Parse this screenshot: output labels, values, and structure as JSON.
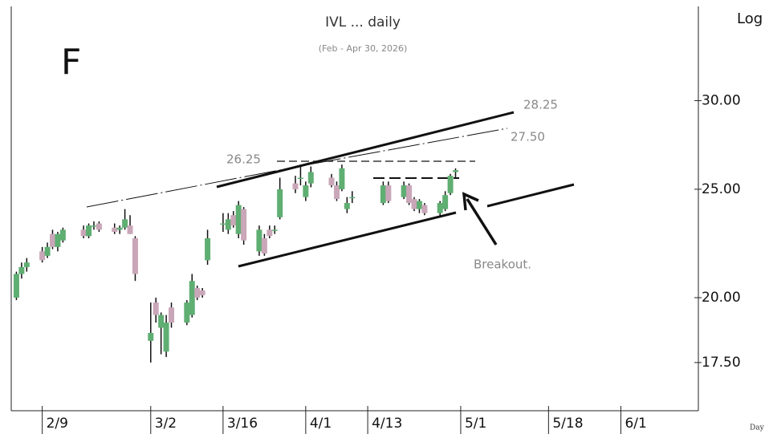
{
  "chart_data": {
    "type": "candlestick",
    "title": "IVL ... daily",
    "subtitle": "(Feb - Apr 30, 2026)",
    "panel_label": "F",
    "scale_label": "Log",
    "period_label": "Day",
    "annotations": [
      "26.25",
      "27.50",
      "28.25",
      "Breakout."
    ],
    "log_scale": true,
    "up_color": "#5fae72",
    "down_color": "#c9a6b8",
    "xlim": [
      "2/3",
      "6/16"
    ],
    "xticks": [
      "2/9",
      "3/2",
      "3/16",
      "4/1",
      "4/13",
      "5/1",
      "5/18",
      "6/1"
    ],
    "ylim": [
      15.9,
      36.3
    ],
    "yticks": [
      {
        "value": 17.5,
        "label": "17.50"
      },
      {
        "value": 20,
        "label": "20.00"
      },
      {
        "value": 25,
        "label": "25.00"
      },
      {
        "value": 30,
        "label": "30.00"
      }
    ],
    "x": [
      "2/4",
      "2/5",
      "2/6",
      "2/9",
      "2/10",
      "2/11",
      "2/12",
      "2/13",
      "2/17",
      "2/18",
      "2/19",
      "2/20",
      "2/23",
      "2/24",
      "2/25",
      "2/26",
      "2/27",
      "3/2",
      "3/3",
      "3/4",
      "3/5",
      "3/6",
      "3/9",
      "3/10",
      "3/11",
      "3/12",
      "3/13",
      "3/16",
      "3/17",
      "3/18",
      "3/19",
      "3/20",
      "3/23",
      "3/24",
      "3/25",
      "3/26",
      "3/27",
      "3/30",
      "3/31",
      "4/1",
      "4/2",
      "4/6",
      "4/7",
      "4/8",
      "4/9",
      "4/10",
      "4/16",
      "4/17",
      "4/20",
      "4/21",
      "4/22",
      "4/23",
      "4/24",
      "4/27",
      "4/28",
      "4/29",
      "4/30"
    ],
    "open": [
      20.0,
      21.0,
      21.3,
      22.0,
      21.8,
      22.8,
      22.2,
      22.5,
      23.0,
      22.7,
      23.2,
      23.3,
      23.1,
      23.0,
      23.1,
      23.2,
      22.6,
      18.3,
      19.8,
      18.8,
      17.9,
      19.6,
      19.0,
      19.3,
      20.4,
      20.3,
      21.6,
      23.3,
      23.0,
      23.7,
      22.8,
      24.0,
      22.0,
      22.6,
      23.0,
      23.0,
      23.6,
      25.3,
      25.6,
      24.6,
      25.3,
      25.6,
      25.2,
      25.0,
      24.0,
      24.6,
      24.3,
      25.2,
      24.6,
      25.2,
      24.5,
      24.0,
      24.2,
      23.8,
      24.0,
      24.8,
      25.9
    ],
    "high": [
      21.1,
      21.5,
      21.7,
      22.2,
      22.4,
      23.0,
      22.9,
      23.1,
      23.2,
      23.3,
      23.4,
      23.4,
      23.3,
      23.2,
      24.0,
      23.7,
      22.7,
      19.8,
      20.0,
      19.4,
      19.3,
      19.8,
      19.9,
      21.0,
      20.5,
      20.4,
      23.0,
      23.8,
      23.8,
      23.9,
      24.4,
      24.1,
      23.2,
      22.8,
      23.2,
      23.2,
      25.6,
      25.7,
      26.3,
      25.4,
      26.2,
      25.8,
      25.4,
      26.3,
      24.6,
      24.9,
      25.4,
      25.4,
      25.4,
      25.3,
      24.6,
      24.5,
      24.3,
      24.4,
      24.9,
      25.8,
      26.1
    ],
    "low": [
      19.9,
      20.8,
      21.1,
      21.5,
      21.7,
      22.1,
      22.0,
      22.4,
      22.6,
      22.6,
      23.0,
      22.9,
      22.8,
      22.8,
      23.0,
      22.8,
      20.7,
      17.5,
      19.0,
      17.8,
      17.7,
      18.8,
      18.9,
      19.2,
      19.9,
      20.0,
      21.4,
      22.9,
      22.8,
      23.1,
      22.6,
      22.3,
      21.8,
      21.8,
      22.6,
      22.8,
      23.5,
      24.8,
      25.2,
      24.4,
      25.1,
      25.1,
      24.4,
      24.9,
      23.8,
      24.3,
      24.2,
      24.3,
      24.5,
      24.2,
      23.9,
      23.8,
      23.7,
      23.6,
      23.9,
      24.7,
      25.6
    ],
    "close": [
      21.0,
      21.3,
      21.5,
      21.6,
      22.2,
      22.2,
      22.8,
      23.0,
      22.7,
      23.2,
      23.2,
      23.0,
      22.9,
      23.1,
      23.5,
      22.8,
      21.0,
      18.6,
      19.3,
      19.3,
      19.0,
      19.0,
      19.8,
      20.7,
      20.0,
      20.1,
      22.6,
      23.3,
      23.5,
      23.2,
      24.2,
      22.5,
      23.0,
      21.9,
      22.7,
      23.0,
      25.0,
      25.0,
      25.6,
      25.2,
      25.9,
      25.2,
      24.5,
      26.1,
      24.3,
      24.6,
      25.2,
      24.4,
      25.2,
      24.3,
      24.0,
      24.4,
      23.8,
      24.3,
      24.7,
      25.7,
      26.0
    ]
  }
}
